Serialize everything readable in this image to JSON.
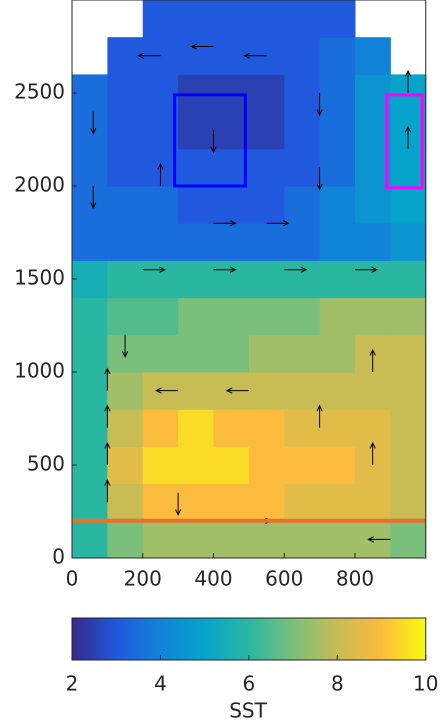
{
  "chart_data": {
    "type": "heatmap",
    "xlim": [
      0,
      1000
    ],
    "ylim": [
      0,
      3000
    ],
    "xticks": [
      0,
      200,
      400,
      600,
      800
    ],
    "yticks": [
      0,
      500,
      1000,
      1500,
      2000,
      2500
    ],
    "x_edges": [
      0,
      100,
      200,
      300,
      400,
      500,
      600,
      700,
      800,
      900,
      1000
    ],
    "y_edges": [
      0,
      200,
      400,
      600,
      800,
      1000,
      1200,
      1400,
      1600,
      1800,
      2000,
      2200,
      2400,
      2600,
      2800,
      3000
    ],
    "values": [
      [
        6,
        7,
        7.5,
        7.5,
        7.5,
        7.5,
        7.5,
        7.5,
        7.5,
        7
      ],
      [
        6,
        8,
        9,
        9,
        9,
        9,
        8.5,
        8.5,
        8.5,
        8
      ],
      [
        6,
        8.5,
        9.5,
        9.5,
        9.5,
        9,
        9,
        9,
        8.5,
        8
      ],
      [
        6,
        8,
        9,
        9.5,
        9,
        9,
        8.5,
        8.5,
        8.5,
        8
      ],
      [
        6,
        7.5,
        8,
        8,
        8,
        8,
        8,
        8,
        8,
        8
      ],
      [
        6,
        7,
        7,
        7,
        7,
        7.5,
        7.5,
        7.5,
        8,
        8
      ],
      [
        6,
        6.5,
        6.5,
        7,
        7,
        7,
        7,
        7.5,
        7.5,
        7.5
      ],
      [
        5.5,
        6,
        6,
        6,
        6,
        6,
        6,
        6,
        6,
        6
      ],
      [
        3.5,
        3.5,
        3.5,
        3.5,
        3.5,
        3.5,
        3.5,
        4,
        4,
        4.5
      ],
      [
        3.5,
        3.5,
        3.5,
        3,
        3,
        3,
        3.5,
        4,
        4.5,
        5
      ],
      [
        3.5,
        3,
        3,
        3,
        3,
        3,
        3,
        3.5,
        4.5,
        5
      ],
      [
        3.5,
        3,
        3,
        2.5,
        2.5,
        2.5,
        3,
        3.5,
        4.5,
        5
      ],
      [
        3.5,
        3,
        3,
        2.5,
        2.5,
        2.5,
        3,
        3.5,
        4.5,
        5
      ],
      [
        null,
        3,
        3,
        3,
        3,
        3,
        3,
        3.5,
        4,
        null
      ],
      [
        null,
        null,
        3,
        3,
        3,
        3,
        3,
        3,
        null,
        null
      ]
    ],
    "colormap": [
      "#352a87",
      "#2058de",
      "#1183d8",
      "#06a4ca",
      "#2ab7a1",
      "#7abf7b",
      "#c8bc55",
      "#fbbc3d",
      "#f9fb0e"
    ],
    "clim": [
      2,
      10
    ],
    "cticks": [
      2,
      4,
      6,
      8,
      10
    ],
    "colorbar_label": "SST",
    "quiver": {
      "color": "#000000",
      "x": [
        100,
        100,
        100,
        100,
        60,
        60,
        250,
        400,
        550,
        700,
        700,
        550,
        400,
        250,
        200,
        400,
        600,
        800,
        950,
        950,
        300,
        500,
        700,
        500,
        300,
        150,
        850,
        850,
        900,
        400
      ],
      "y": [
        300,
        500,
        700,
        900,
        2000,
        2400,
        2700,
        2750,
        2700,
        2500,
        2100,
        1800,
        1800,
        2000,
        1550,
        1550,
        1550,
        1550,
        2200,
        2500,
        900,
        900,
        700,
        200,
        350,
        1200,
        1000,
        500,
        100,
        2300
      ],
      "u": [
        0,
        0,
        0,
        0,
        0,
        0,
        -1,
        -1,
        -1,
        0,
        0,
        1,
        1,
        0,
        1,
        1,
        1,
        1,
        0,
        0,
        -1,
        -1,
        0,
        1,
        0,
        0,
        0,
        0,
        -1,
        0
      ],
      "v": [
        1,
        1,
        1,
        1,
        -1,
        -1,
        0,
        0,
        0,
        -1,
        -1,
        0,
        0,
        1,
        0,
        0,
        0,
        0,
        1,
        1,
        0,
        0,
        1,
        0,
        -1,
        -1,
        1,
        1,
        0,
        -1
      ]
    },
    "boxes": [
      {
        "color": "#0000ff",
        "x": [
          290,
          490
        ],
        "y": [
          2000,
          2490
        ]
      },
      {
        "color": "#ff00ff",
        "x": [
          890,
          990
        ],
        "y": [
          1990,
          2490
        ]
      }
    ],
    "hlines": [
      {
        "color": "#e8702a",
        "y": 200
      }
    ]
  }
}
